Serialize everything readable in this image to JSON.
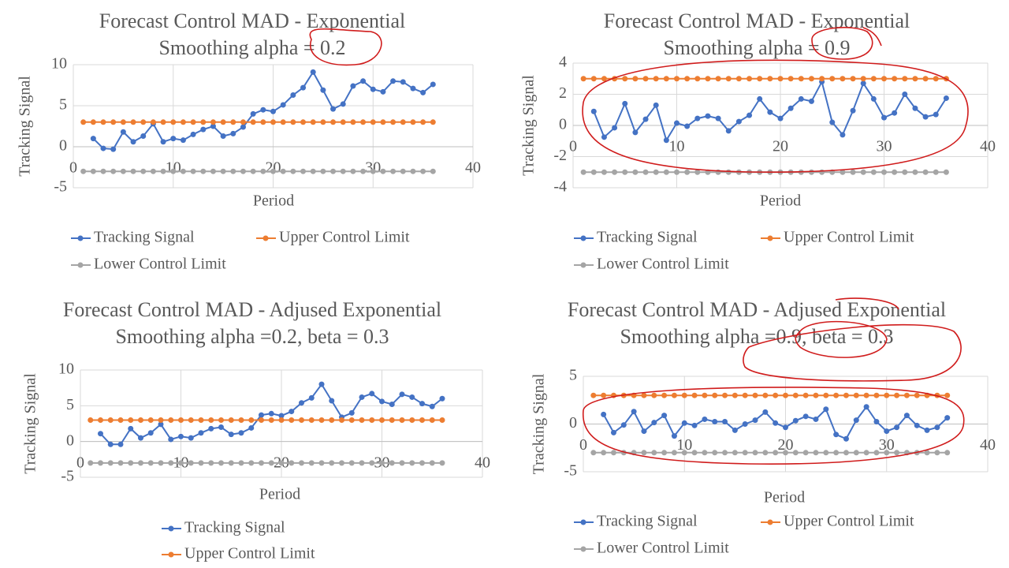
{
  "chart_data": [
    {
      "type": "line",
      "title": "Forecast Control MAD - Exponential Smoothing alpha = 0.2",
      "xlabel": "Period",
      "ylabel": "Tracking Signal",
      "x": [
        1,
        2,
        3,
        4,
        5,
        6,
        7,
        8,
        9,
        10,
        11,
        12,
        13,
        14,
        15,
        16,
        17,
        18,
        19,
        20,
        21,
        22,
        23,
        24,
        25,
        26,
        27,
        28,
        29,
        30,
        31,
        32,
        33,
        34,
        35,
        36
      ],
      "xlim": [
        0,
        40
      ],
      "xticks": [
        0,
        10,
        20,
        30,
        40
      ],
      "ylim": [
        -5,
        10
      ],
      "yticks": [
        -5,
        0,
        5,
        10
      ],
      "grid": true,
      "series": [
        {
          "name": "Tracking Signal",
          "color": "#4472c4",
          "values": [
            null,
            1.0,
            -0.2,
            -0.3,
            1.8,
            0.6,
            1.3,
            2.8,
            0.6,
            1.0,
            0.8,
            1.5,
            2.1,
            2.5,
            1.3,
            1.6,
            2.4,
            4.0,
            4.5,
            4.3,
            5.1,
            6.3,
            7.2,
            9.1,
            6.9,
            4.6,
            5.2,
            7.4,
            8.0,
            7.0,
            6.7,
            8.0,
            7.9,
            7.1,
            6.6,
            7.6
          ]
        },
        {
          "name": "Upper Control Limit",
          "color": "#ed7d31",
          "values": [
            3,
            3,
            3,
            3,
            3,
            3,
            3,
            3,
            3,
            3,
            3,
            3,
            3,
            3,
            3,
            3,
            3,
            3,
            3,
            3,
            3,
            3,
            3,
            3,
            3,
            3,
            3,
            3,
            3,
            3,
            3,
            3,
            3,
            3,
            3,
            3
          ]
        },
        {
          "name": "Lower Control Limit",
          "color": "#a5a5a5",
          "values": [
            -3,
            -3,
            -3,
            -3,
            -3,
            -3,
            -3,
            -3,
            -3,
            -3,
            -3,
            -3,
            -3,
            -3,
            -3,
            -3,
            -3,
            -3,
            -3,
            -3,
            -3,
            -3,
            -3,
            -3,
            -3,
            -3,
            -3,
            -3,
            -3,
            -3,
            -3,
            -3,
            -3,
            -3,
            -3,
            -3
          ]
        }
      ]
    },
    {
      "type": "line",
      "title": "Forecast Control MAD - Exponential Smoothing alpha = 0.9",
      "xlabel": "Period",
      "ylabel": "Tracking Signal",
      "x": [
        1,
        2,
        3,
        4,
        5,
        6,
        7,
        8,
        9,
        10,
        11,
        12,
        13,
        14,
        15,
        16,
        17,
        18,
        19,
        20,
        21,
        22,
        23,
        24,
        25,
        26,
        27,
        28,
        29,
        30,
        31,
        32,
        33,
        34,
        35,
        36
      ],
      "xlim": [
        0,
        40
      ],
      "xticks": [
        0,
        10,
        20,
        30,
        40
      ],
      "ylim": [
        -4,
        4
      ],
      "yticks": [
        -4,
        -2,
        0,
        2,
        4
      ],
      "grid": true,
      "series": [
        {
          "name": "Tracking Signal",
          "color": "#4472c4",
          "values": [
            null,
            0.9,
            -0.75,
            -0.15,
            1.4,
            -0.45,
            0.4,
            1.3,
            -0.95,
            0.15,
            -0.05,
            0.45,
            0.6,
            0.45,
            -0.35,
            0.25,
            0.65,
            1.7,
            0.85,
            0.45,
            1.1,
            1.7,
            1.55,
            2.8,
            0.2,
            -0.6,
            0.95,
            2.7,
            1.7,
            0.5,
            0.8,
            2.0,
            1.1,
            0.55,
            0.7,
            1.75
          ]
        },
        {
          "name": "Upper Control Limit",
          "color": "#ed7d31",
          "values": [
            3,
            3,
            3,
            3,
            3,
            3,
            3,
            3,
            3,
            3,
            3,
            3,
            3,
            3,
            3,
            3,
            3,
            3,
            3,
            3,
            3,
            3,
            3,
            3,
            3,
            3,
            3,
            3,
            3,
            3,
            3,
            3,
            3,
            3,
            3,
            3
          ]
        },
        {
          "name": "Lower Control Limit",
          "color": "#a5a5a5",
          "values": [
            -3,
            -3,
            -3,
            -3,
            -3,
            -3,
            -3,
            -3,
            -3,
            -3,
            -3,
            -3,
            -3,
            -3,
            -3,
            -3,
            -3,
            -3,
            -3,
            -3,
            -3,
            -3,
            -3,
            -3,
            -3,
            -3,
            -3,
            -3,
            -3,
            -3,
            -3,
            -3,
            -3,
            -3,
            -3,
            -3
          ]
        }
      ]
    },
    {
      "type": "line",
      "title": "Forecast Control MAD - Adjused Exponential Smoothing alpha =0.2, beta = 0.3",
      "xlabel": "Period",
      "ylabel": "Tracking Signal",
      "x": [
        1,
        2,
        3,
        4,
        5,
        6,
        7,
        8,
        9,
        10,
        11,
        12,
        13,
        14,
        15,
        16,
        17,
        18,
        19,
        20,
        21,
        22,
        23,
        24,
        25,
        26,
        27,
        28,
        29,
        30,
        31,
        32,
        33,
        34,
        35,
        36
      ],
      "xlim": [
        0,
        40
      ],
      "xticks": [
        0,
        10,
        20,
        30,
        40
      ],
      "ylim": [
        -5,
        10
      ],
      "yticks": [
        -5,
        0,
        5,
        10
      ],
      "grid": true,
      "series": [
        {
          "name": "Tracking Signal",
          "color": "#4472c4",
          "values": [
            null,
            1.1,
            -0.4,
            -0.4,
            1.8,
            0.5,
            1.2,
            2.4,
            0.3,
            0.7,
            0.5,
            1.2,
            1.8,
            2.0,
            1.0,
            1.2,
            1.9,
            3.7,
            3.9,
            3.6,
            4.2,
            5.4,
            6.1,
            8.0,
            5.7,
            3.4,
            4.0,
            6.2,
            6.7,
            5.6,
            5.2,
            6.6,
            6.2,
            5.3,
            4.9,
            6.0
          ]
        },
        {
          "name": "Upper Control Limit",
          "color": "#ed7d31",
          "values": [
            3,
            3,
            3,
            3,
            3,
            3,
            3,
            3,
            3,
            3,
            3,
            3,
            3,
            3,
            3,
            3,
            3,
            3,
            3,
            3,
            3,
            3,
            3,
            3,
            3,
            3,
            3,
            3,
            3,
            3,
            3,
            3,
            3,
            3,
            3,
            3
          ]
        },
        {
          "color": "#a5a5a5",
          "values": [
            -3,
            -3,
            -3,
            -3,
            -3,
            -3,
            -3,
            -3,
            -3,
            -3,
            -3,
            -3,
            -3,
            -3,
            -3,
            -3,
            -3,
            -3,
            -3,
            -3,
            -3,
            -3,
            -3,
            -3,
            -3,
            -3,
            -3,
            -3,
            -3,
            -3,
            -3,
            -3,
            -3,
            -3,
            -3,
            -3
          ]
        }
      ]
    },
    {
      "type": "line",
      "title": "Forecast Control MAD - Adjused Exponential Smoothing alpha =0.9, beta = 0.3",
      "xlabel": "Period",
      "ylabel": "Tracking Signal",
      "x": [
        1,
        2,
        3,
        4,
        5,
        6,
        7,
        8,
        9,
        10,
        11,
        12,
        13,
        14,
        15,
        16,
        17,
        18,
        19,
        20,
        21,
        22,
        23,
        24,
        25,
        26,
        27,
        28,
        29,
        30,
        31,
        32,
        33,
        34,
        35,
        36
      ],
      "xlim": [
        0,
        40
      ],
      "xticks": [
        0,
        10,
        20,
        30,
        40
      ],
      "ylim": [
        -5,
        5
      ],
      "yticks": [
        -5,
        0,
        5
      ],
      "grid": true,
      "series": [
        {
          "name": "Tracking Signal",
          "color": "#4472c4",
          "values": [
            null,
            1.0,
            -0.9,
            -0.1,
            1.3,
            -0.75,
            0.15,
            0.9,
            -1.25,
            0.1,
            -0.15,
            0.5,
            0.25,
            0.25,
            -0.65,
            0.0,
            0.4,
            1.25,
            0.1,
            -0.35,
            0.35,
            0.8,
            0.5,
            1.55,
            -1.1,
            -1.55,
            0.4,
            1.8,
            0.25,
            -0.75,
            -0.35,
            0.9,
            -0.15,
            -0.65,
            -0.35,
            0.65
          ]
        },
        {
          "name": "Upper Control Limit",
          "color": "#ed7d31",
          "values": [
            3,
            3,
            3,
            3,
            3,
            3,
            3,
            3,
            3,
            3,
            3,
            3,
            3,
            3,
            3,
            3,
            3,
            3,
            3,
            3,
            3,
            3,
            3,
            3,
            3,
            3,
            3,
            3,
            3,
            3,
            3,
            3,
            3,
            3,
            3,
            3
          ]
        },
        {
          "name": "Lower Control Limit",
          "color": "#a5a5a5",
          "values": [
            -3,
            -3,
            -3,
            -3,
            -3,
            -3,
            -3,
            -3,
            -3,
            -3,
            -3,
            -3,
            -3,
            -3,
            -3,
            -3,
            -3,
            -3,
            -3,
            -3,
            -3,
            -3,
            -3,
            -3,
            -3,
            -3,
            -3,
            -3,
            -3,
            -3,
            -3,
            -3,
            -3,
            -3,
            -3,
            -3
          ]
        }
      ]
    }
  ]
}
